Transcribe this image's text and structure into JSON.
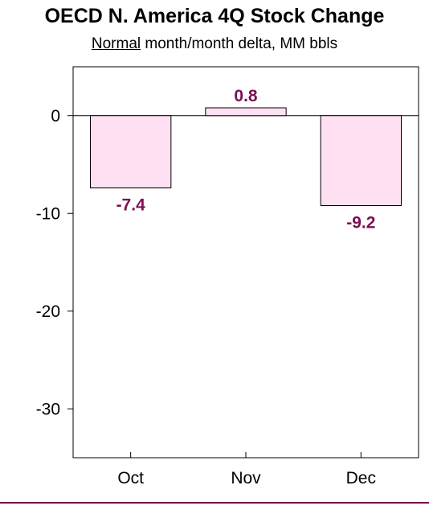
{
  "title": "OECD N. America 4Q Stock Change",
  "subtitle": {
    "emphasis": "Normal",
    "rest": " month/month delta, MM bbls"
  },
  "colors": {
    "bar_fill": "#ffe0f3",
    "bar_stroke": "#000000",
    "data_label": "#7b1052",
    "bottom_rule": "#7b1052"
  },
  "chart_data": {
    "type": "bar",
    "title": "OECD N. America 4Q Stock Change",
    "subtitle": "Normal month/month delta, MM bbls",
    "categories": [
      "Oct",
      "Nov",
      "Dec"
    ],
    "values": [
      -7.4,
      0.8,
      -9.2
    ],
    "data_labels": [
      "-7.4",
      "0.8",
      "-9.2"
    ],
    "ylim": [
      -35,
      5
    ],
    "yticks": [
      0,
      -10,
      -20,
      -30
    ],
    "ytick_labels": [
      "0",
      "-10",
      "-20",
      "-30"
    ],
    "xlabel": "",
    "ylabel": "",
    "grid": false,
    "legend": "none"
  }
}
